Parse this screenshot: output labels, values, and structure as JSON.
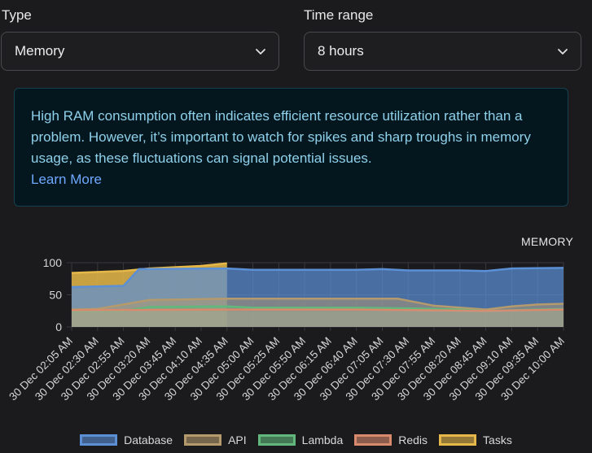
{
  "filters": {
    "type": {
      "label": "Type",
      "value": "Memory"
    },
    "time_range": {
      "label": "Time range",
      "value": "8 hours"
    }
  },
  "info": {
    "text": "High RAM consumption often indicates efficient resource utilization rather than a problem. However, it’s important to watch for spikes and sharp troughs in memory usage, as these fluctuations can signal potential issues.",
    "link": "Learn More"
  },
  "colors": {
    "database": "#5b8fd6",
    "api": "#b49a6c",
    "lambda": "#62b87c",
    "redis": "#d98a6c",
    "tasks": "#e6b84a"
  },
  "chart_data": {
    "type": "area",
    "title": "MEMORY",
    "ylim": [
      0,
      100
    ],
    "yticks": [
      0,
      50,
      100
    ],
    "grid": true,
    "legend_position": "bottom",
    "x_ticks": [
      "30 Dec 02:05 AM",
      "30 Dec 02:30 AM",
      "30 Dec 02:55 AM",
      "30 Dec 03:20 AM",
      "30 Dec 03:45 AM",
      "30 Dec 04:10 AM",
      "30 Dec 04:35 AM",
      "30 Dec 05:00 AM",
      "30 Dec 05:25 AM",
      "30 Dec 05:50 AM",
      "30 Dec 06:15 AM",
      "30 Dec 06:40 AM",
      "30 Dec 07:05 AM",
      "30 Dec 07:30 AM",
      "30 Dec 07:55 AM",
      "30 Dec 08:20 AM",
      "30 Dec 08:45 AM",
      "30 Dec 09:10 AM",
      "30 Dec 09:35 AM",
      "30 Dec 10:00 AM"
    ],
    "series": [
      {
        "name": "Database",
        "color": "#5b8fd6",
        "points": [
          [
            "30 Dec 02:05 AM",
            62
          ],
          [
            "30 Dec 02:55 AM",
            64
          ],
          [
            "30 Dec 03:10 AM",
            90
          ],
          [
            "30 Dec 04:35 AM",
            91
          ],
          [
            "30 Dec 05:00 AM",
            89
          ],
          [
            "30 Dec 06:40 AM",
            89
          ],
          [
            "30 Dec 07:05 AM",
            90
          ],
          [
            "30 Dec 07:30 AM",
            88
          ],
          [
            "30 Dec 08:20 AM",
            88
          ],
          [
            "30 Dec 08:45 AM",
            87
          ],
          [
            "30 Dec 09:10 AM",
            91
          ],
          [
            "30 Dec 10:00 AM",
            92
          ]
        ]
      },
      {
        "name": "API",
        "color": "#b49a6c",
        "points": [
          [
            "30 Dec 02:05 AM",
            27
          ],
          [
            "30 Dec 02:30 AM",
            28
          ],
          [
            "30 Dec 02:55 AM",
            35
          ],
          [
            "30 Dec 03:20 AM",
            42
          ],
          [
            "30 Dec 04:35 AM",
            44
          ],
          [
            "30 Dec 05:00 AM",
            44
          ],
          [
            "30 Dec 06:40 AM",
            44
          ],
          [
            "30 Dec 07:20 AM",
            44
          ],
          [
            "30 Dec 07:55 AM",
            33
          ],
          [
            "30 Dec 08:20 AM",
            30
          ],
          [
            "30 Dec 08:45 AM",
            27
          ],
          [
            "30 Dec 09:10 AM",
            32
          ],
          [
            "30 Dec 09:35 AM",
            35
          ],
          [
            "30 Dec 10:00 AM",
            36
          ]
        ]
      },
      {
        "name": "Lambda",
        "color": "#62b87c",
        "points": [
          [
            "30 Dec 02:05 AM",
            24
          ],
          [
            "30 Dec 02:55 AM",
            25
          ],
          [
            "30 Dec 03:20 AM",
            31
          ],
          [
            "30 Dec 04:35 AM",
            32
          ],
          [
            "30 Dec 05:00 AM",
            30
          ],
          [
            "30 Dec 06:40 AM",
            30
          ],
          [
            "30 Dec 07:30 AM",
            29
          ],
          [
            "30 Dec 08:20 AM",
            27
          ],
          [
            "30 Dec 08:45 AM",
            25
          ],
          [
            "30 Dec 09:35 AM",
            27
          ],
          [
            "30 Dec 10:00 AM",
            28
          ]
        ]
      },
      {
        "name": "Redis",
        "color": "#d98a6c",
        "points": [
          [
            "30 Dec 02:05 AM",
            26
          ],
          [
            "30 Dec 04:35 AM",
            27
          ],
          [
            "30 Dec 06:40 AM",
            27
          ],
          [
            "30 Dec 08:45 AM",
            25
          ],
          [
            "30 Dec 10:00 AM",
            27
          ]
        ]
      },
      {
        "name": "Tasks",
        "color": "#e6b84a",
        "points": [
          [
            "30 Dec 02:05 AM",
            84
          ],
          [
            "30 Dec 02:55 AM",
            87
          ],
          [
            "30 Dec 03:20 AM",
            91
          ],
          [
            "30 Dec 04:10 AM",
            95
          ],
          [
            "30 Dec 04:35 AM",
            99
          ]
        ]
      }
    ]
  }
}
